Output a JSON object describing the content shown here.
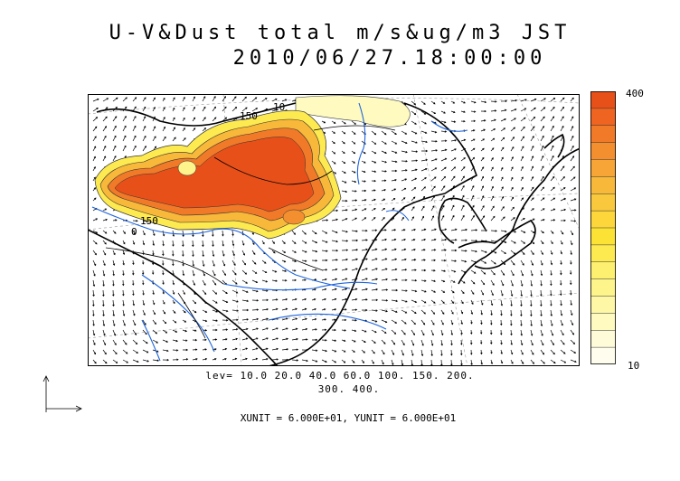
{
  "title": "U-V&Dust total m/s&ug/m3 JST",
  "subtitle": "2010/06/27.18:00:00",
  "legend": {
    "max_label": "400",
    "min_label": "10",
    "colors": [
      "#e8501a",
      "#ee6420",
      "#f17a28",
      "#f48f30",
      "#f6a536",
      "#f8b83a",
      "#fac83c",
      "#fcd63a",
      "#fde236",
      "#fdea50",
      "#fdf070",
      "#fdf48c",
      "#fdf7a6",
      "#fefac0",
      "#fefcd8",
      "#fffeee"
    ]
  },
  "levels_line1": "lev= 10.0 20.0 40.0 60.0 100. 150. 200.",
  "levels_line2": "300. 400.",
  "units_text": "XUNIT = 6.000E+01, YUNIT = 6.000E+01",
  "contour_labels": [
    "150",
    "10",
    "150",
    "0"
  ]
}
